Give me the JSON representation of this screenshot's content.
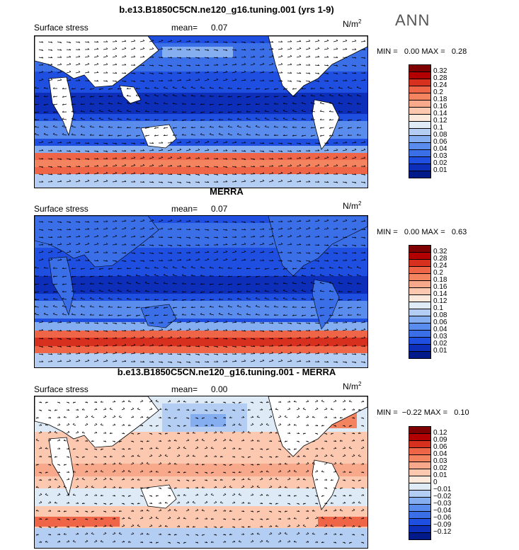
{
  "season": "ANN",
  "panels": [
    {
      "title": "b.e13.B1850C5CN.ne120_g16.tuning.001 (yrs 1-9)",
      "variable": "Surface stress",
      "mean_label": "mean=",
      "mean": "0.07",
      "units": "N/m",
      "units_exp": "2",
      "min_label": "MIN =",
      "min": "0.00",
      "max_label": "MAX =",
      "max": "0.28",
      "colorbar": {
        "labels": [
          "0.32",
          "0.28",
          "0.24",
          "0.2",
          "0.18",
          "0.16",
          "0.14",
          "0.12",
          "0.1",
          "0.08",
          "0.06",
          "0.04",
          "0.03",
          "0.02",
          "0.01"
        ],
        "colors": [
          "#7f0000",
          "#b30000",
          "#d7301f",
          "#ef6548",
          "#f4845f",
          "#f9a98b",
          "#fcc8b0",
          "#fde8dc",
          "#deebf7",
          "#b4cdf2",
          "#84aef0",
          "#5a8cee",
          "#3a6fe8",
          "#1f4fe0",
          "#0c2eb8",
          "#001a8a"
        ]
      }
    },
    {
      "title": "MERRA",
      "variable": "Surface stress",
      "mean_label": "mean=",
      "mean": "0.07",
      "units": "N/m",
      "units_exp": "2",
      "min_label": "MIN =",
      "min": "0.00",
      "max_label": "MAX =",
      "max": "0.63",
      "colorbar": {
        "labels": [
          "0.32",
          "0.28",
          "0.24",
          "0.2",
          "0.18",
          "0.16",
          "0.14",
          "0.12",
          "0.1",
          "0.08",
          "0.06",
          "0.04",
          "0.03",
          "0.02",
          "0.01"
        ],
        "colors": [
          "#7f0000",
          "#b30000",
          "#d7301f",
          "#ef6548",
          "#f4845f",
          "#f9a98b",
          "#fcc8b0",
          "#fde8dc",
          "#deebf7",
          "#b4cdf2",
          "#84aef0",
          "#5a8cee",
          "#3a6fe8",
          "#1f4fe0",
          "#0c2eb8",
          "#001a8a"
        ]
      }
    },
    {
      "title": "b.e13.B1850C5CN.ne120_g16.tuning.001 - MERRA",
      "variable": "Surface stress",
      "mean_label": "mean=",
      "mean": "0.00",
      "units": "N/m",
      "units_exp": "2",
      "min_label": "MIN =",
      "min": "−0.22",
      "max_label": "MAX =",
      "max": "0.10",
      "colorbar": {
        "labels": [
          "0.12",
          "0.09",
          "0.06",
          "0.04",
          "0.03",
          "0.02",
          "0.01",
          "0",
          "−0.01",
          "−0.02",
          "−0.03",
          "−0.04",
          "−0.06",
          "−0.09",
          "−0.12"
        ],
        "colors": [
          "#7f0000",
          "#b30000",
          "#d7301f",
          "#ef6548",
          "#f4845f",
          "#f9a98b",
          "#fcc8b0",
          "#fde8dc",
          "#deebf7",
          "#b4cdf2",
          "#84aef0",
          "#5a8cee",
          "#3a6fe8",
          "#1f4fe0",
          "#0c2eb8",
          "#001a8a"
        ]
      }
    }
  ]
}
